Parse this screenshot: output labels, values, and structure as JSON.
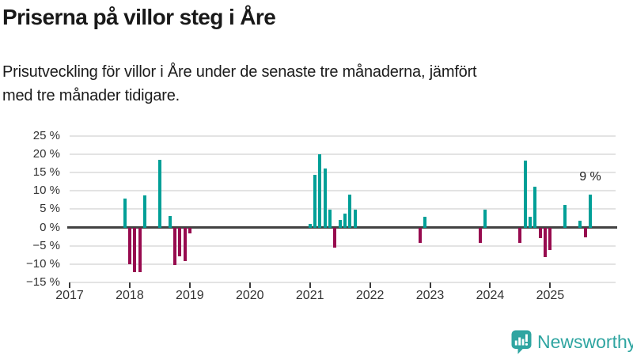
{
  "chart_data": {
    "type": "bar",
    "title": "Priserna på villor steg i Åre",
    "subtitle_lines": [
      "Prisutveckling för villor i Åre under de senaste tre månaderna, jämfört",
      "med tre månader tidigare."
    ],
    "unit": "%",
    "x": [
      "2017-12",
      "2018-01",
      "2018-02",
      "2018-03",
      "2018-04",
      "2018-07",
      "2018-09",
      "2018-10",
      "2018-11",
      "2018-12",
      "2019-01",
      "2021-01",
      "2021-02",
      "2021-03",
      "2021-04",
      "2021-05",
      "2021-06",
      "2021-07",
      "2021-08",
      "2021-09",
      "2021-10",
      "2022-11",
      "2022-12",
      "2023-11",
      "2023-12",
      "2024-07",
      "2024-08",
      "2024-09",
      "2024-10",
      "2024-11",
      "2024-12",
      "2025-01",
      "2025-04",
      "2025-07",
      "2025-08",
      "2025-09"
    ],
    "values": [
      7.9,
      -10.0,
      -12.3,
      -12.1,
      8.7,
      18.5,
      3.2,
      -10.2,
      -7.8,
      -9.2,
      -1.6,
      1.0,
      14.3,
      20.1,
      16.2,
      4.9,
      -5.4,
      2.0,
      3.8,
      9.0,
      4.9,
      -4.1,
      2.9,
      -4.2,
      4.9,
      -4.1,
      18.3,
      2.9,
      11.1,
      -3.0,
      -8.1,
      -6.2,
      6.2,
      1.8,
      -2.7,
      9.0
    ],
    "annotation": {
      "text": "9 %",
      "x": "2025-09"
    },
    "ylim": [
      -15,
      25
    ],
    "yticks": [
      25,
      20,
      15,
      10,
      5,
      0,
      -5,
      -10,
      -15
    ],
    "ytick_labels": [
      "25 %",
      "20 %",
      "15 %",
      "10 %",
      "5 %",
      "0 %",
      "−5 %",
      "−10 %",
      "−15 %"
    ],
    "xtick_labels": [
      "2017",
      "2018",
      "2019",
      "2020",
      "2021",
      "2022",
      "2023",
      "2024",
      "2025"
    ],
    "x_range_start": "2017-01",
    "grid": true,
    "legend": false,
    "colors": {
      "positive": "#009f97",
      "negative": "#970b4f"
    }
  },
  "footer": {
    "brand": "Newsworthy",
    "brand_color": "#2fa5a1",
    "logo_icon": "bar-chart-speech-bubble-icon"
  }
}
